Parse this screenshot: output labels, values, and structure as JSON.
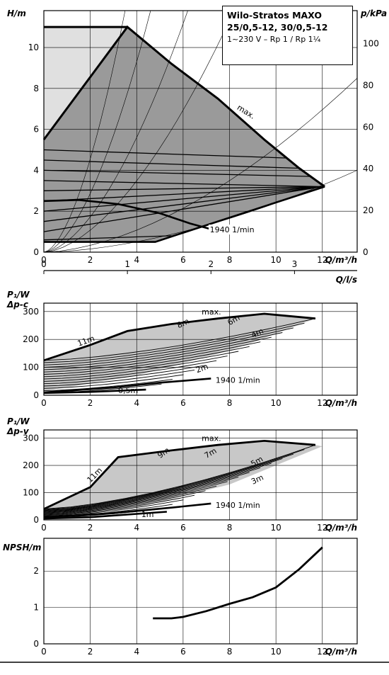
{
  "info_box": {
    "line1": "Wilo-Stratos MAXO",
    "line2": "25/0,5-12, 30/0,5-12",
    "line3": "1~230 V – Rp 1 / Rp 1¼"
  },
  "colors": {
    "ink": "#000000",
    "fill_dark": "#9a9a9a",
    "fill_light": "#e0e0e0",
    "fill_mid": "#c8c8c8"
  },
  "chart_data": [
    {
      "id": "head",
      "type": "line",
      "ylabel": "H/m",
      "y2label": "p/kPa",
      "xlabel": "Q/m³/h",
      "xlim": [
        0,
        13.5
      ],
      "ylim": [
        0,
        11.8
      ],
      "xticks": [
        0,
        2,
        4,
        6,
        8,
        10,
        12
      ],
      "yticks": [
        0,
        2,
        4,
        6,
        8,
        10
      ],
      "y2ticks": [
        0,
        20,
        40,
        60,
        80,
        100
      ],
      "grid": true,
      "envelope_max": {
        "x": [
          0,
          3.6,
          5.5,
          7.5,
          9.5,
          11,
          12.1
        ],
        "y": [
          11,
          11,
          9.2,
          7.5,
          5.5,
          4.1,
          3.2
        ]
      },
      "lower_limit": {
        "x": [
          0,
          1.5,
          3.2,
          5,
          6.3,
          7.6
        ],
        "y": [
          2.5,
          2.55,
          2.35,
          1.9,
          1.4,
          1.0
        ]
      },
      "min_curve": {
        "x": [
          0,
          4.8,
          5.6,
          12.1
        ],
        "y": [
          0.5,
          0.5,
          0.8,
          3.2
        ]
      },
      "pressure_curves": [
        {
          "start": 0.6,
          "end_x": 5.5,
          "end_y": 0.8
        },
        {
          "start": 1.0,
          "end_x": 12.0,
          "end_y": 3.2
        },
        {
          "start": 1.5,
          "end_x": 12.0,
          "end_y": 3.2
        },
        {
          "start": 2.0,
          "end_x": 12.0,
          "end_y": 3.2
        },
        {
          "start": 2.5,
          "end_x": 12.0,
          "end_y": 3.2
        },
        {
          "start": 3.0,
          "end_x": 12.0,
          "end_y": 3.2
        },
        {
          "start": 3.5,
          "end_x": 12.0,
          "end_y": 3.2
        },
        {
          "start": 4.0,
          "end_x": 11.5,
          "end_y": 3.7
        },
        {
          "start": 4.5,
          "end_x": 11.0,
          "end_y": 4.1
        },
        {
          "start": 5.0,
          "end_x": 10.5,
          "end_y": 4.6
        }
      ],
      "diagonal_lines": [
        {
          "x": [
            0,
            13.5
          ],
          "y": [
            0.0,
            4.0
          ]
        },
        {
          "x": [
            0,
            13.5
          ],
          "y": [
            0.0,
            8.5
          ]
        },
        {
          "x": [
            0,
            8.2
          ],
          "y": [
            0.0,
            11.8
          ]
        },
        {
          "x": [
            0,
            6.2
          ],
          "y": [
            0.0,
            11.8
          ]
        },
        {
          "x": [
            0,
            4.6
          ],
          "y": [
            0.0,
            11.8
          ]
        },
        {
          "x": [
            0,
            3.5
          ],
          "y": [
            0.0,
            11.8
          ]
        }
      ],
      "annotations": {
        "max": "max.",
        "speed": "1940 1/min"
      }
    },
    {
      "id": "flow_ls",
      "type": "axis",
      "xlabel": "Q/l/s",
      "xlim": [
        0,
        3.75
      ],
      "xticks": [
        0,
        1,
        2,
        3
      ]
    },
    {
      "id": "power_dpc",
      "type": "line",
      "ylabel": "P₁/W",
      "ylabel2": "Δp-c",
      "xlabel": "Q/m³/h",
      "xlim": [
        0,
        13.5
      ],
      "ylim": [
        0,
        330
      ],
      "xticks": [
        0,
        2,
        4,
        6,
        8,
        10,
        12
      ],
      "yticks": [
        0,
        100,
        200,
        300
      ],
      "grid": true,
      "max_curve": {
        "x": [
          0,
          2,
          3.6,
          5.5,
          7.5,
          9.5,
          11.7
        ],
        "y": [
          125,
          180,
          230,
          255,
          275,
          292,
          275
        ]
      },
      "speed_curve": {
        "x": [
          0,
          3,
          5,
          7.2
        ],
        "y": [
          10,
          28,
          45,
          60
        ]
      },
      "min_curve": {
        "x": [
          0,
          2,
          4.4
        ],
        "y": [
          8,
          12,
          20
        ]
      },
      "shade_lower": {
        "x": [
          0,
          4,
          8,
          10,
          12
        ],
        "y": [
          15,
          70,
          160,
          220,
          285
        ]
      },
      "curve_labels": [
        "11m",
        "8m",
        "6m",
        "4m",
        "2m",
        "0,5m"
      ],
      "annotations": {
        "max": "max.",
        "speed": "1940 1/min"
      }
    },
    {
      "id": "power_dpv",
      "type": "line",
      "ylabel": "P₁/W",
      "ylabel2": "Δp-v",
      "xlabel": "Q/m³/h",
      "xlim": [
        0,
        13.5
      ],
      "ylim": [
        0,
        330
      ],
      "xticks": [
        0,
        2,
        4,
        6,
        8,
        10,
        12
      ],
      "yticks": [
        0,
        100,
        200,
        300
      ],
      "grid": true,
      "max_curve": {
        "x": [
          0,
          2,
          3.2,
          5.5,
          7.5,
          9.5,
          11.7
        ],
        "y": [
          40,
          120,
          230,
          255,
          275,
          290,
          275
        ]
      },
      "speed_curve": {
        "x": [
          0,
          3,
          5.5,
          7.2
        ],
        "y": [
          10,
          25,
          45,
          60
        ]
      },
      "min_curve": {
        "x": [
          0,
          2,
          5.3
        ],
        "y": [
          5,
          10,
          30
        ]
      },
      "shade_lower": {
        "x": [
          0,
          4,
          8,
          10,
          12
        ],
        "y": [
          10,
          45,
          130,
          200,
          270
        ]
      },
      "curve_labels": [
        "11m",
        "9m",
        "7m",
        "5m",
        "3m",
        "1m"
      ],
      "annotations": {
        "max": "max.",
        "speed": "1940 1/min"
      }
    },
    {
      "id": "npsh",
      "type": "line",
      "ylabel": "NPSH/m",
      "xlabel": "Q/m³/h",
      "xlim": [
        0,
        13.5
      ],
      "ylim": [
        0,
        2.9
      ],
      "xticks": [
        0,
        2,
        4,
        6,
        8,
        10,
        12
      ],
      "yticks": [
        0,
        1,
        2
      ],
      "grid": true,
      "curve": {
        "x": [
          4.7,
          5.5,
          6,
          7,
          8,
          9,
          10,
          11,
          12
        ],
        "y": [
          0.7,
          0.7,
          0.74,
          0.9,
          1.1,
          1.28,
          1.55,
          2.05,
          2.65
        ]
      }
    }
  ]
}
